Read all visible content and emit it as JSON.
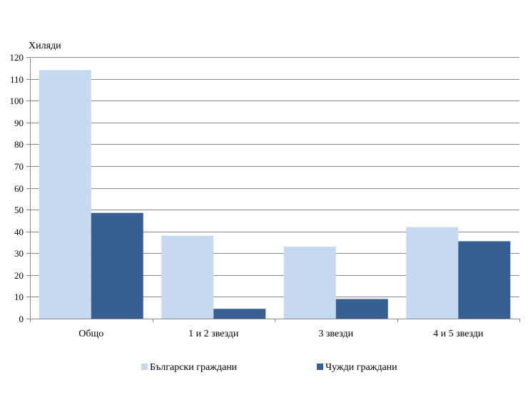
{
  "chart_data": {
    "type": "bar",
    "title": "",
    "xlabel": "",
    "ylabel": "Хиляди",
    "ylim": [
      0,
      120
    ],
    "yticks": [
      0,
      10,
      20,
      30,
      40,
      50,
      60,
      70,
      80,
      90,
      100,
      110,
      120
    ],
    "grid": true,
    "legend_position": "bottom",
    "categories": [
      "Общо",
      "1 и 2 звезди",
      "3 звезди",
      "4 и 5 звезди"
    ],
    "series": [
      {
        "name": "Български граждани",
        "color": "#c6d9f1",
        "values": [
          114,
          38,
          33,
          42
        ]
      },
      {
        "name": "Чужди граждани",
        "color": "#376092",
        "values": [
          48.5,
          4.5,
          9,
          35.5
        ]
      }
    ]
  }
}
